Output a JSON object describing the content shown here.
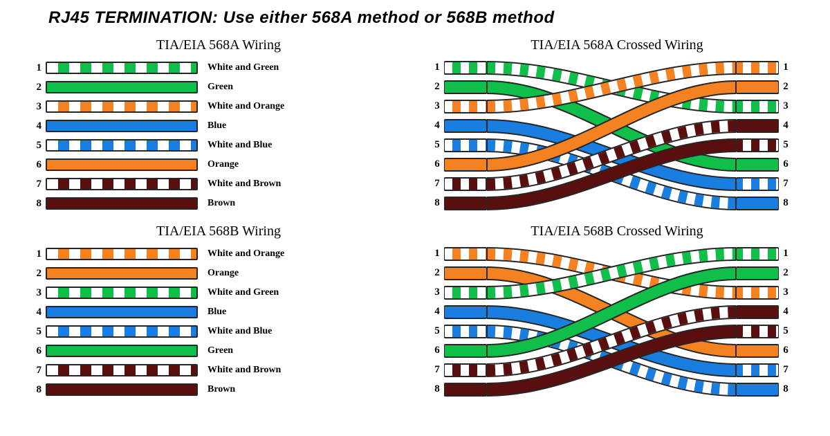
{
  "title": "RJ45 TERMINATION: Use  either 568A method or 568B method",
  "colors": {
    "green": "#0fbf4a",
    "orange": "#f58220",
    "blue": "#1a7ee0",
    "brown": "#5a0f0f",
    "white": "#ffffff",
    "border": "#262626"
  },
  "wireHeight": 18,
  "rowGap": 10,
  "stubWidth": 62,
  "svgWidth": 484,
  "panels": {
    "a_straight": {
      "title": "TIA/EIA 568A Wiring",
      "pins": [
        {
          "n": 1,
          "label": "White and Green",
          "type": "striped",
          "color": "green"
        },
        {
          "n": 2,
          "label": "Green",
          "type": "solid",
          "color": "green"
        },
        {
          "n": 3,
          "label": "White and Orange",
          "type": "striped",
          "color": "orange"
        },
        {
          "n": 4,
          "label": "Blue",
          "type": "solid",
          "color": "blue"
        },
        {
          "n": 5,
          "label": "White and Blue",
          "type": "striped",
          "color": "blue"
        },
        {
          "n": 6,
          "label": "Orange",
          "type": "solid",
          "color": "orange"
        },
        {
          "n": 7,
          "label": "White and Brown",
          "type": "striped",
          "color": "brown"
        },
        {
          "n": 8,
          "label": "Brown",
          "type": "solid",
          "color": "brown"
        }
      ]
    },
    "a_crossed": {
      "title": "TIA/EIA 568A Crossed Wiring",
      "left": [
        {
          "n": 1,
          "type": "striped",
          "color": "green"
        },
        {
          "n": 2,
          "type": "solid",
          "color": "green"
        },
        {
          "n": 3,
          "type": "striped",
          "color": "orange"
        },
        {
          "n": 4,
          "type": "solid",
          "color": "blue"
        },
        {
          "n": 5,
          "type": "striped",
          "color": "blue"
        },
        {
          "n": 6,
          "type": "solid",
          "color": "orange"
        },
        {
          "n": 7,
          "type": "striped",
          "color": "brown"
        },
        {
          "n": 8,
          "type": "solid",
          "color": "brown"
        }
      ],
      "right": [
        {
          "n": 1,
          "type": "striped",
          "color": "orange"
        },
        {
          "n": 2,
          "type": "solid",
          "color": "orange"
        },
        {
          "n": 3,
          "type": "striped",
          "color": "green"
        },
        {
          "n": 4,
          "type": "solid",
          "color": "brown"
        },
        {
          "n": 5,
          "type": "striped",
          "color": "brown"
        },
        {
          "n": 6,
          "type": "solid",
          "color": "green"
        },
        {
          "n": 7,
          "type": "striped",
          "color": "blue"
        },
        {
          "n": 8,
          "type": "solid",
          "color": "blue"
        }
      ],
      "map": [
        [
          1,
          3
        ],
        [
          2,
          6
        ],
        [
          3,
          1
        ],
        [
          4,
          7
        ],
        [
          5,
          8
        ],
        [
          6,
          2
        ],
        [
          7,
          4
        ],
        [
          8,
          5
        ]
      ]
    },
    "b_straight": {
      "title": "TIA/EIA 568B Wiring",
      "pins": [
        {
          "n": 1,
          "label": "White and Orange",
          "type": "striped",
          "color": "orange"
        },
        {
          "n": 2,
          "label": "Orange",
          "type": "solid",
          "color": "orange"
        },
        {
          "n": 3,
          "label": "White and Green",
          "type": "striped",
          "color": "green"
        },
        {
          "n": 4,
          "label": "Blue",
          "type": "solid",
          "color": "blue"
        },
        {
          "n": 5,
          "label": "White and Blue",
          "type": "striped",
          "color": "blue"
        },
        {
          "n": 6,
          "label": "Green",
          "type": "solid",
          "color": "green"
        },
        {
          "n": 7,
          "label": "White and Brown",
          "type": "striped",
          "color": "brown"
        },
        {
          "n": 8,
          "label": "Brown",
          "type": "solid",
          "color": "brown"
        }
      ]
    },
    "b_crossed": {
      "title": "TIA/EIA 568B Crossed Wiring",
      "left": [
        {
          "n": 1,
          "type": "striped",
          "color": "orange"
        },
        {
          "n": 2,
          "type": "solid",
          "color": "orange"
        },
        {
          "n": 3,
          "type": "striped",
          "color": "green"
        },
        {
          "n": 4,
          "type": "solid",
          "color": "blue"
        },
        {
          "n": 5,
          "type": "striped",
          "color": "blue"
        },
        {
          "n": 6,
          "type": "solid",
          "color": "green"
        },
        {
          "n": 7,
          "type": "striped",
          "color": "brown"
        },
        {
          "n": 8,
          "type": "solid",
          "color": "brown"
        }
      ],
      "right": [
        {
          "n": 1,
          "type": "striped",
          "color": "green"
        },
        {
          "n": 2,
          "type": "solid",
          "color": "green"
        },
        {
          "n": 3,
          "type": "striped",
          "color": "orange"
        },
        {
          "n": 4,
          "type": "solid",
          "color": "brown"
        },
        {
          "n": 5,
          "type": "striped",
          "color": "brown"
        },
        {
          "n": 6,
          "type": "solid",
          "color": "orange"
        },
        {
          "n": 7,
          "type": "striped",
          "color": "blue"
        },
        {
          "n": 8,
          "type": "solid",
          "color": "blue"
        }
      ],
      "map": [
        [
          1,
          3
        ],
        [
          2,
          6
        ],
        [
          3,
          1
        ],
        [
          4,
          7
        ],
        [
          5,
          8
        ],
        [
          6,
          2
        ],
        [
          7,
          4
        ],
        [
          8,
          5
        ]
      ]
    }
  }
}
